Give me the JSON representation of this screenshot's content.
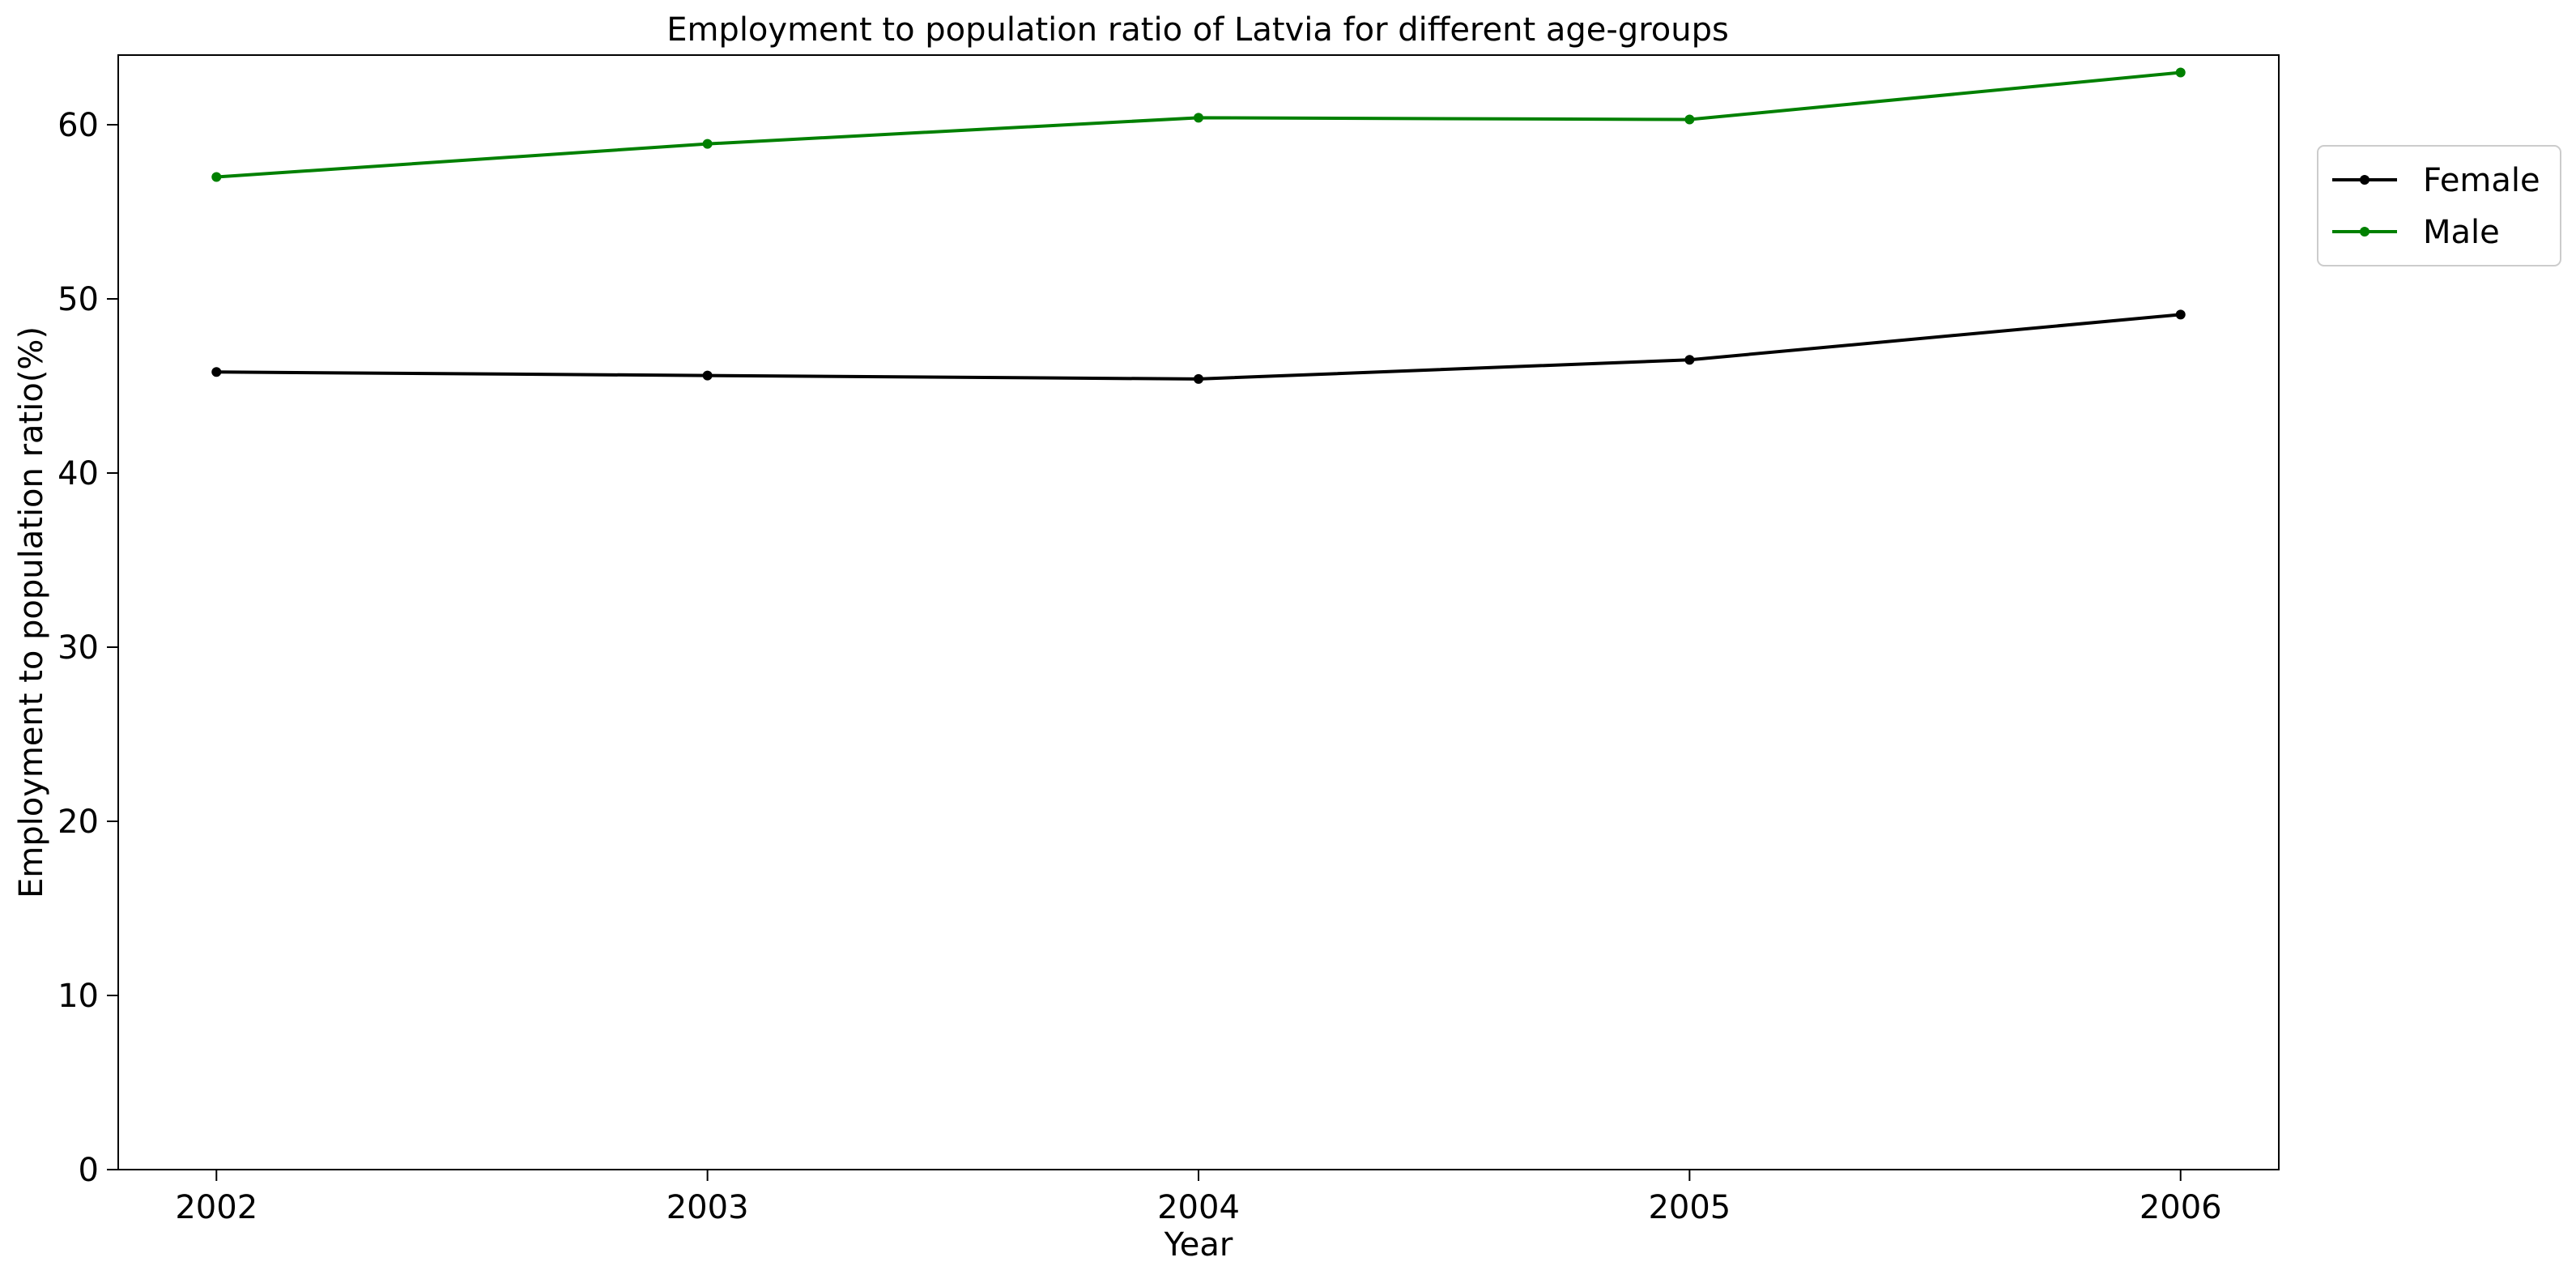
{
  "chart_data": {
    "type": "line",
    "title": "Employment to population ratio of Latvia for different age-groups",
    "xlabel": "Year",
    "ylabel": "Employment to population ratio(%)",
    "x": [
      2002,
      2003,
      2004,
      2005,
      2006
    ],
    "x_tick_labels": [
      "2002",
      "2003",
      "2004",
      "2005",
      "2006"
    ],
    "xlim": [
      2001.8,
      2006.2
    ],
    "ylim": [
      0,
      64
    ],
    "y_ticks": [
      0,
      10,
      20,
      30,
      40,
      50,
      60
    ],
    "y_tick_labels": [
      "0",
      "10",
      "20",
      "30",
      "40",
      "50",
      "60"
    ],
    "grid": false,
    "legend_position": "outside-right-top",
    "series": [
      {
        "name": "Female",
        "color": "#000000",
        "values": [
          45.8,
          45.6,
          45.4,
          46.5,
          49.1
        ]
      },
      {
        "name": "Male",
        "color": "#008000",
        "values": [
          57.0,
          58.9,
          60.4,
          60.3,
          63.0
        ]
      }
    ]
  }
}
